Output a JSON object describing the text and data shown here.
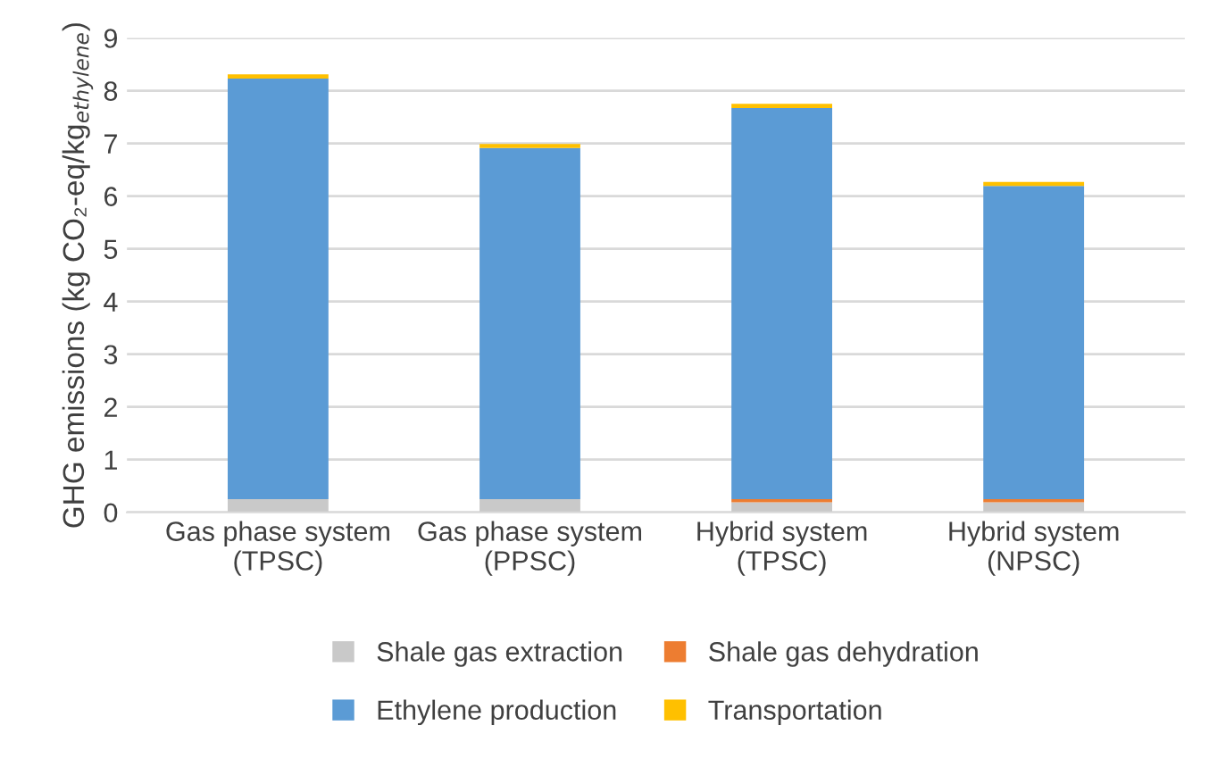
{
  "chart_data": {
    "type": "bar",
    "stacked": true,
    "ylabel": "GHG emissions (kg CO₂-eq/kg$_{ethylene}$)",
    "categories": [
      "Gas phase system\n(TPSC)",
      "Gas phase system\n(PPSC)",
      "Hybrid system\n(TPSC)",
      "Hybrid system\n(NPSC)"
    ],
    "series": [
      {
        "name": "Shale gas extraction",
        "color": "#c9c9c9",
        "values": [
          0.25,
          0.25,
          0.19,
          0.19
        ]
      },
      {
        "name": "Shale gas dehydration",
        "color": "#ed7d31",
        "values": [
          null,
          null,
          0.06,
          0.06
        ]
      },
      {
        "name": "Ethylene production",
        "color": "#5b9bd5",
        "values": [
          7.98,
          6.66,
          7.42,
          5.94
        ]
      },
      {
        "name": "Transportation",
        "color": "#ffc000",
        "values": [
          0.08,
          0.08,
          0.08,
          0.08
        ]
      }
    ],
    "ylim": [
      0,
      9
    ],
    "yticks": [
      0,
      1,
      2,
      3,
      4,
      5,
      6,
      7,
      8,
      9
    ],
    "grid": "y",
    "legend": "bottom"
  }
}
